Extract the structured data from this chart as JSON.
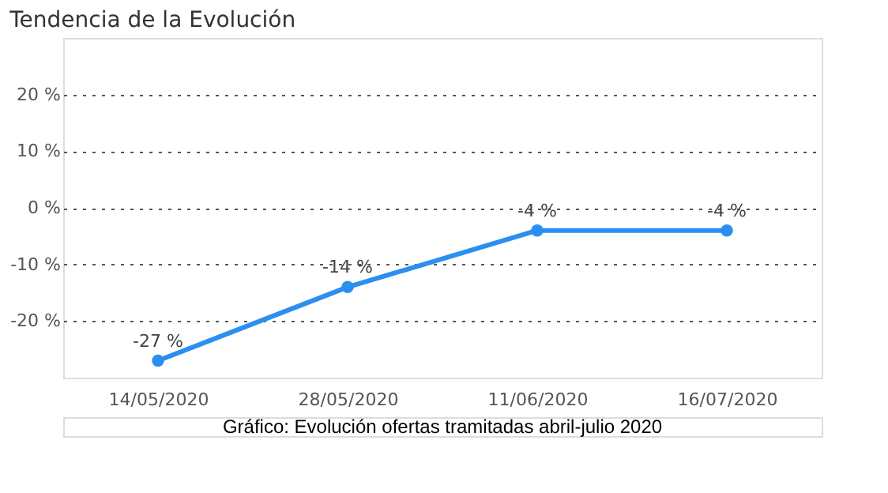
{
  "chart_data": {
    "type": "line",
    "title": "Tendencia de la Evolución",
    "categories": [
      "14/05/2020",
      "28/05/2020",
      "11/06/2020",
      "16/07/2020"
    ],
    "series": [
      {
        "color": "#2b8ff0",
        "values": [
          -27,
          -14,
          -4,
          -4
        ],
        "value_labels": [
          "-27 %",
          "-14 %",
          "-4 %",
          "-4 %"
        ]
      }
    ],
    "ylim": [
      -30,
      30
    ],
    "yticks": [
      {
        "value": -20,
        "label": "-20 %"
      },
      {
        "value": -10,
        "label": "-10 %"
      },
      {
        "value": 0,
        "label": "0 %"
      },
      {
        "value": 10,
        "label": "10 %"
      },
      {
        "value": 20,
        "label": "20 %"
      }
    ],
    "grid": "y",
    "marker": "circle",
    "line_style": "solid",
    "annotations": [
      "Gráfico: Evolución ofertas tramitadas abril-julio 2020"
    ]
  }
}
